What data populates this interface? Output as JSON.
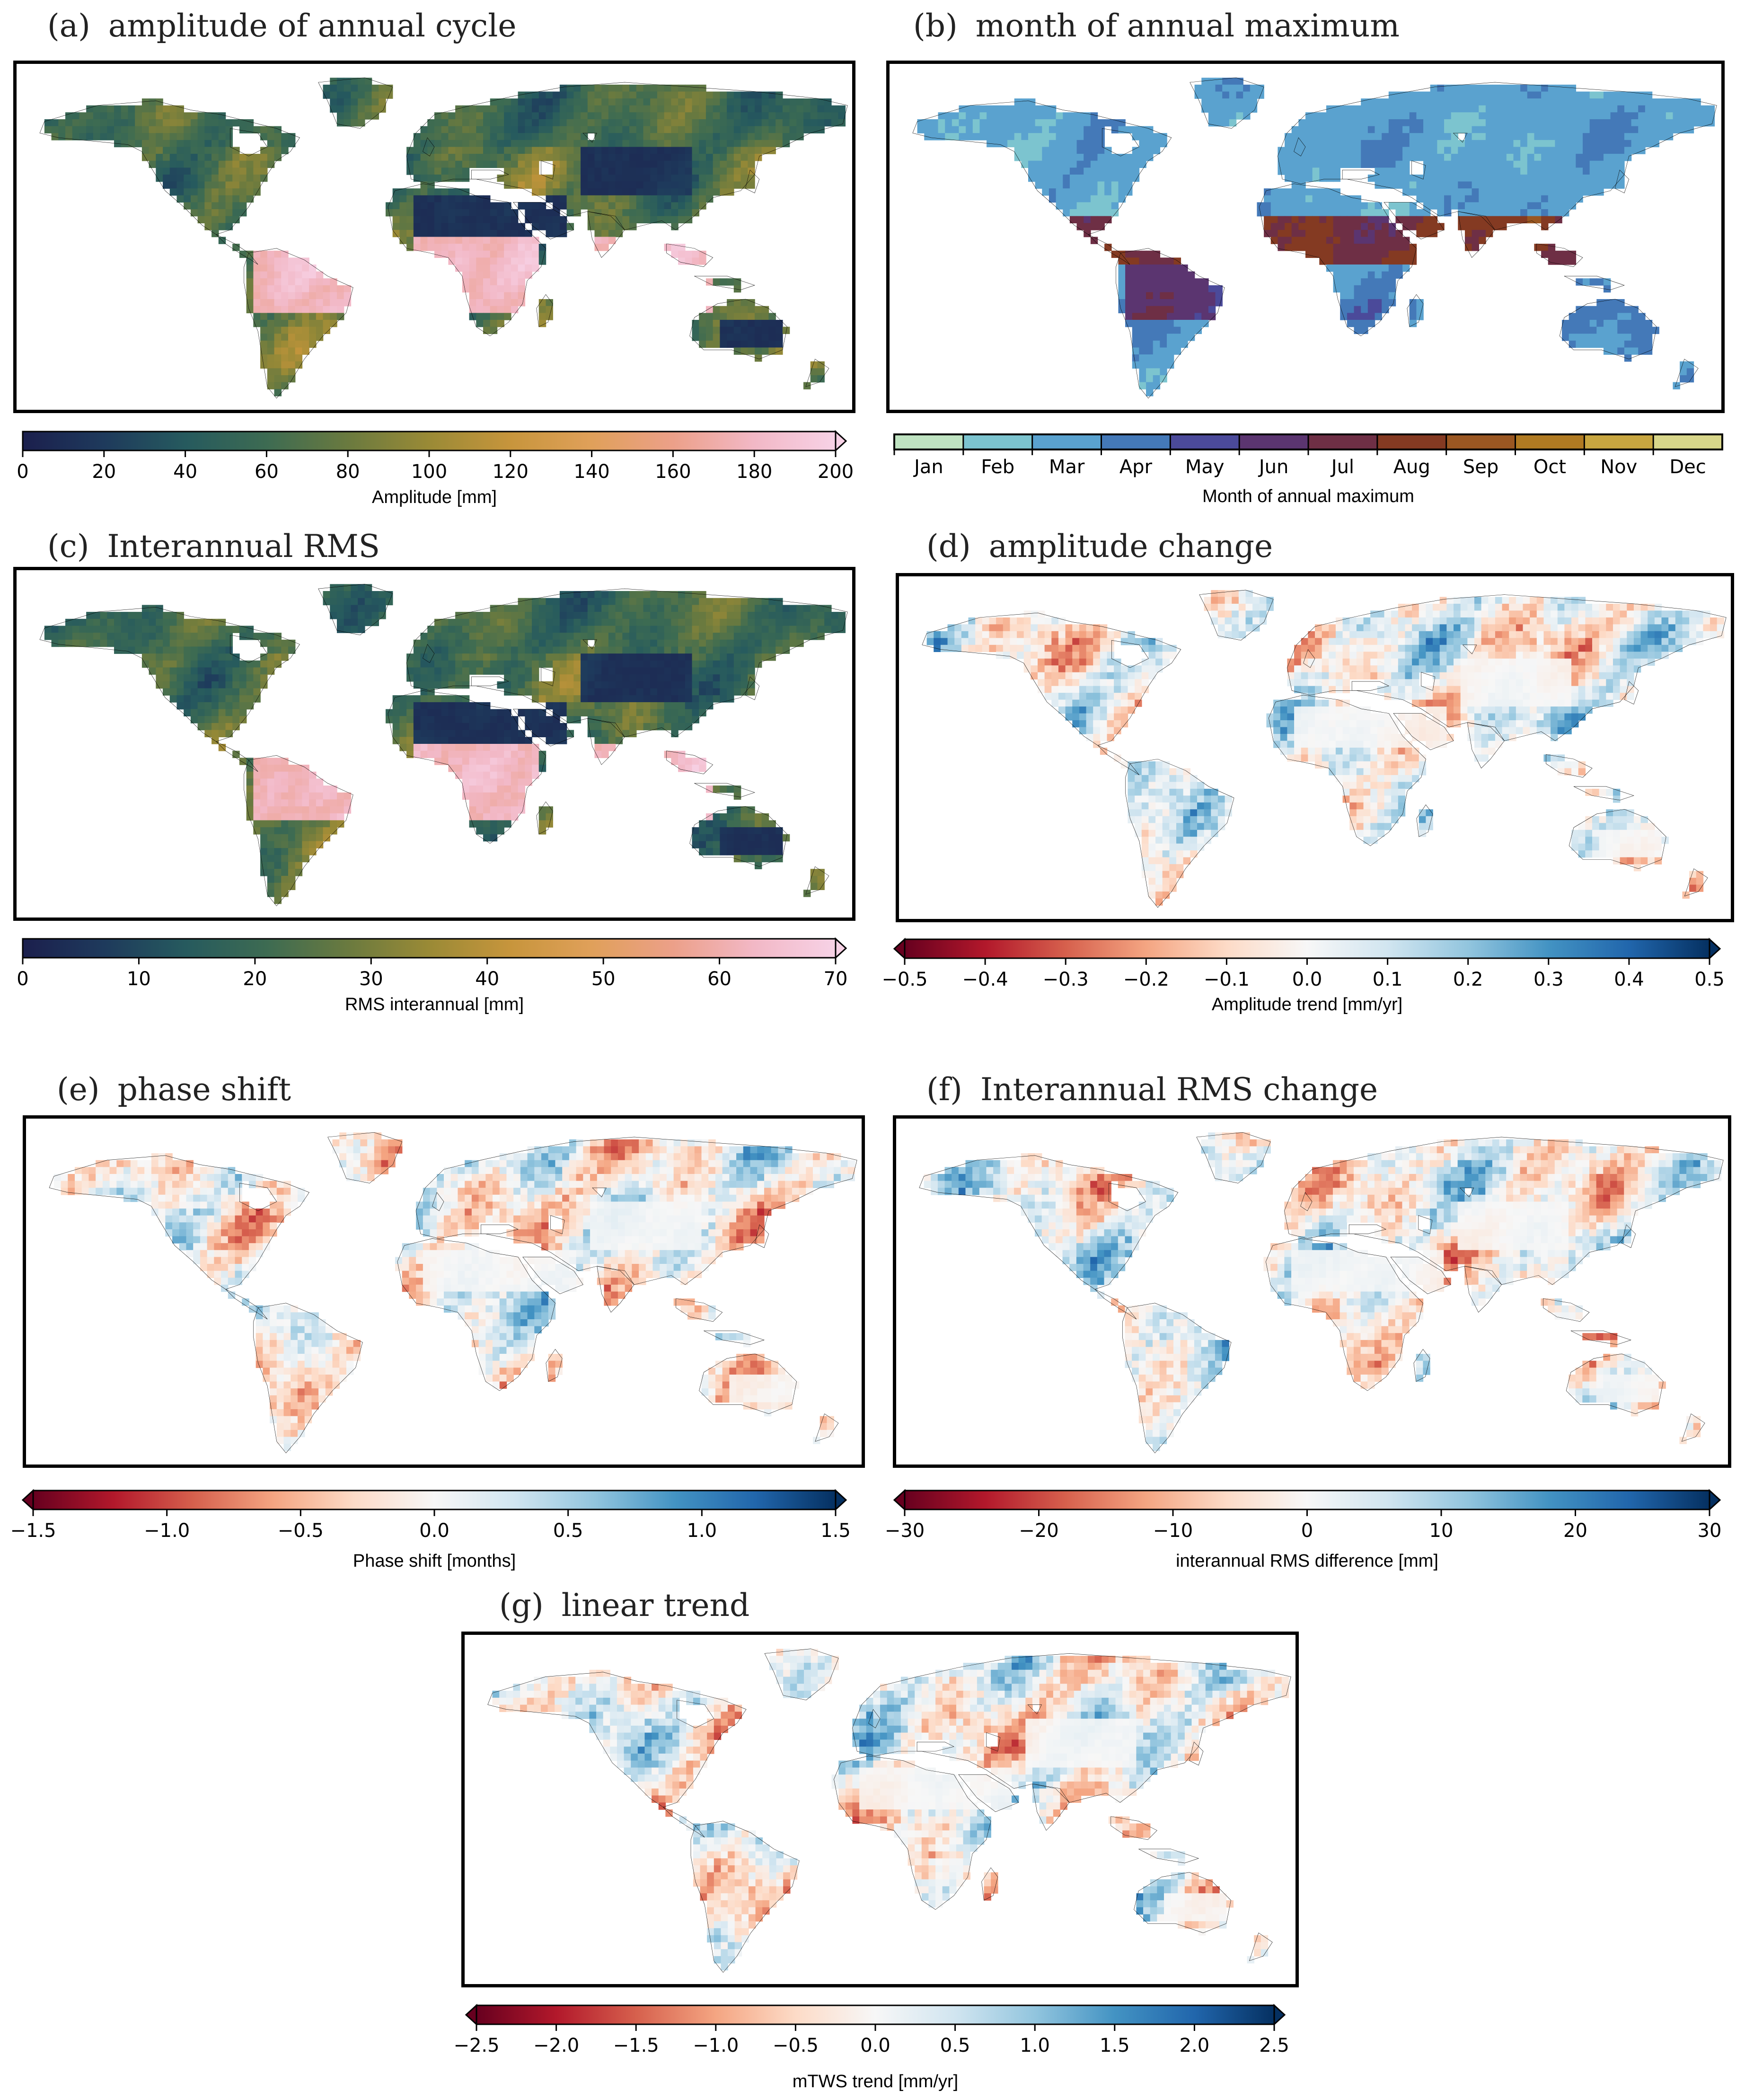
{
  "panels": [
    {
      "id": "a",
      "label": "(a)",
      "title": "amplitude of annual cycle",
      "palette": "batlow",
      "colorbar": {
        "label": "Amplitude [mm]",
        "ticks": [
          "0",
          "20",
          "40",
          "60",
          "80",
          "100",
          "120",
          "140",
          "160",
          "180",
          "200"
        ],
        "extend": "max"
      },
      "pattern": {
        "desert_low": true,
        "tropics_high": true
      }
    },
    {
      "id": "b",
      "label": "(b)",
      "title": "month of annual maximum",
      "palette": "months",
      "colorbar": {
        "label": "Month of annual maximum",
        "months": [
          "Jan",
          "Feb",
          "Mar",
          "Apr",
          "May",
          "Jun",
          "Jul",
          "Aug",
          "Sep",
          "Oct",
          "Nov",
          "Dec"
        ],
        "extend": "none"
      }
    },
    {
      "id": "c",
      "label": "(c)",
      "title": "Interannual RMS",
      "palette": "batlow",
      "colorbar": {
        "label": "RMS interannual [mm]",
        "ticks": [
          "0",
          "10",
          "20",
          "30",
          "40",
          "50",
          "60",
          "70"
        ],
        "extend": "max"
      }
    },
    {
      "id": "d",
      "label": "(d)",
      "title": "amplitude change",
      "palette": "rdbu",
      "colorbar": {
        "label": "Amplitude trend [mm/yr]",
        "ticks": [
          "−0.5",
          "−0.4",
          "−0.3",
          "−0.2",
          "−0.1",
          "0.0",
          "0.1",
          "0.2",
          "0.3",
          "0.4",
          "0.5"
        ],
        "extend": "both"
      }
    },
    {
      "id": "e",
      "label": "(e)",
      "title": "phase shift",
      "palette": "rdbu",
      "colorbar": {
        "label": "Phase shift [months]",
        "ticks": [
          "−1.5",
          "−1.0",
          "−0.5",
          "0.0",
          "0.5",
          "1.0",
          "1.5"
        ],
        "extend": "both"
      }
    },
    {
      "id": "f",
      "label": "(f)",
      "title": "Interannual RMS change",
      "palette": "rdbu",
      "colorbar": {
        "label": "interannual RMS difference [mm]",
        "ticks": [
          "−30",
          "−20",
          "−10",
          "0",
          "10",
          "20",
          "30"
        ],
        "extend": "both"
      }
    },
    {
      "id": "g",
      "label": "(g)",
      "title": "linear trend",
      "palette": "rdbu",
      "colorbar": {
        "label": "mTWS trend [mm/yr]",
        "ticks": [
          "−2.5",
          "−2.0",
          "−1.5",
          "−1.0",
          "−0.5",
          "0.0",
          "0.5",
          "1.0",
          "1.5",
          "2.0",
          "2.5"
        ],
        "extend": "both"
      }
    }
  ],
  "colors": {
    "batlow": [
      "#1b1f4d",
      "#1e3a5c",
      "#265a5e",
      "#3d6b52",
      "#6a7a3f",
      "#9a8a36",
      "#c7953c",
      "#e0a05a",
      "#eca089",
      "#f2b8c6",
      "#f7d2e6"
    ],
    "months": [
      "#bfe3c1",
      "#7cc4cf",
      "#5aa2cf",
      "#4479b8",
      "#4b4a9a",
      "#5b3570",
      "#6e2f45",
      "#843a22",
      "#9a5722",
      "#b07a22",
      "#c8a640",
      "#d8d68a"
    ],
    "rdbu": [
      "#67001f",
      "#b2182b",
      "#d6604d",
      "#f4a582",
      "#fddbc7",
      "#f7f7f7",
      "#d1e5f0",
      "#92c5de",
      "#4393c3",
      "#2166ac",
      "#053061"
    ]
  }
}
